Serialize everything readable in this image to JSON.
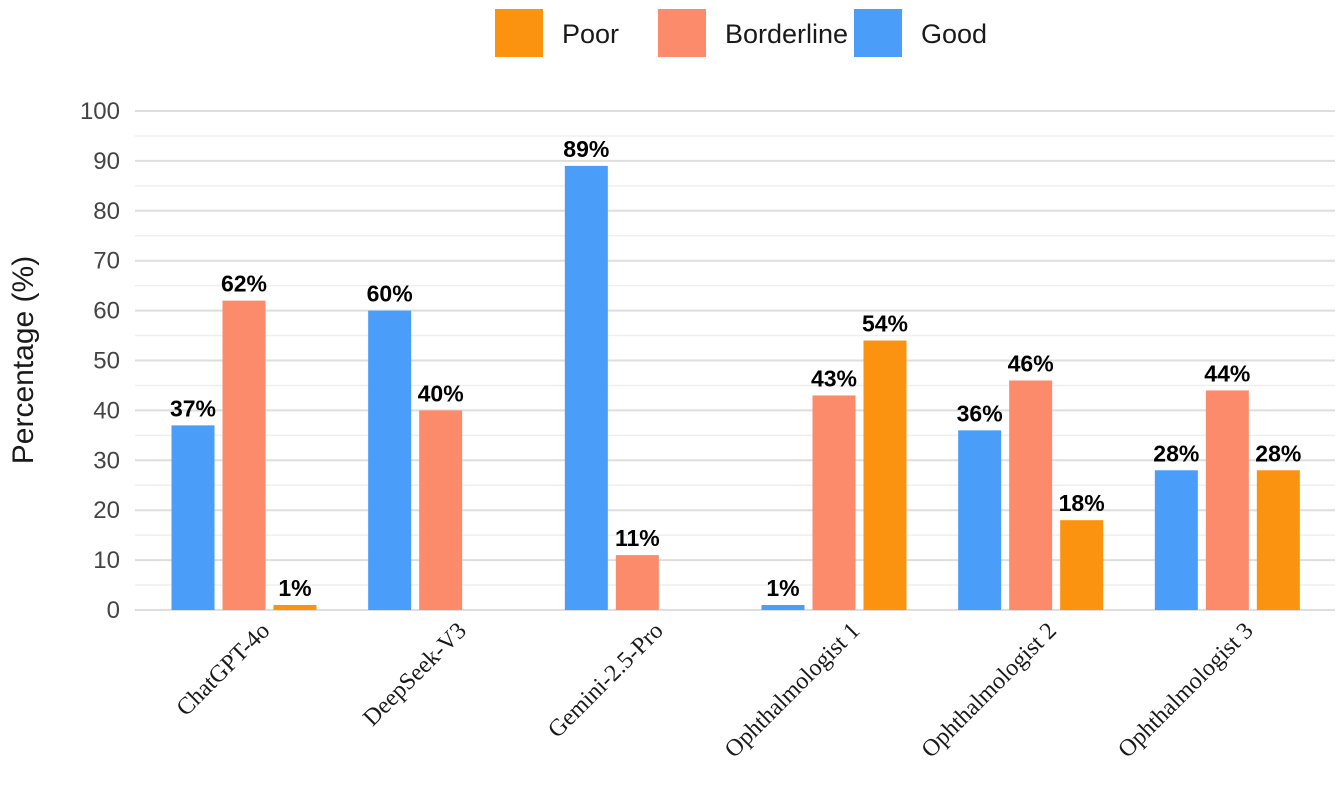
{
  "chart_data": {
    "type": "bar",
    "ylabel": "Percentage (%)",
    "xlabel": "",
    "ylim": [
      0,
      100
    ],
    "yticks": [
      0,
      10,
      20,
      30,
      40,
      50,
      60,
      70,
      80,
      90,
      100
    ],
    "grid": true,
    "legend_position": "top-center",
    "categories": [
      "ChatGPT-4o",
      "DeepSeek-V3",
      "Gemini-2.5-Pro",
      "Ophthalmologist 1",
      "Ophthalmologist 2",
      "Ophthalmologist 3"
    ],
    "legend_order": [
      "Poor",
      "Borderline",
      "Good"
    ],
    "series": [
      {
        "name": "Good",
        "color": "#4a9df8",
        "values": [
          37,
          60,
          89,
          1,
          36,
          28
        ],
        "labels": [
          "37%",
          "60%",
          "89%",
          "1%",
          "36%",
          "28%"
        ]
      },
      {
        "name": "Borderline",
        "color": "#fb8b6a",
        "values": [
          62,
          40,
          11,
          43,
          46,
          44
        ],
        "labels": [
          "62%",
          "40%",
          "11%",
          "43%",
          "46%",
          "44%"
        ]
      },
      {
        "name": "Poor",
        "color": "#fb9210",
        "values": [
          1,
          0,
          0,
          54,
          18,
          28
        ],
        "labels": [
          "1%",
          "",
          "",
          "54%",
          "18%",
          "28%"
        ]
      }
    ]
  }
}
